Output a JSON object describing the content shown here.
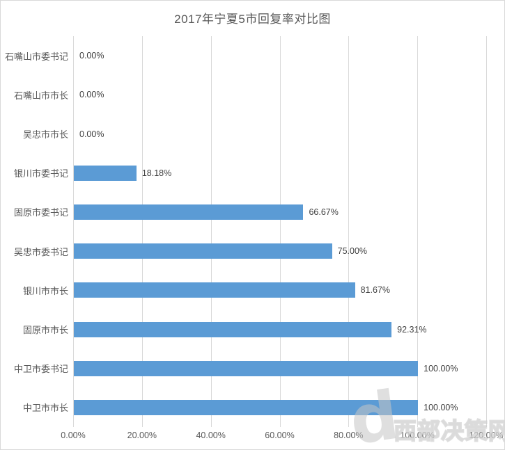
{
  "chart_data": {
    "type": "bar",
    "orientation": "horizontal",
    "title": "2017年宁夏5市回复率对比图",
    "categories": [
      "石嘴山市委书记",
      "石嘴山市市长",
      "吴忠市市长",
      "银川市委书记",
      "固原市委书记",
      "吴忠市委书记",
      "银川市市长",
      "固原市市长",
      "中卫市委书记",
      "中卫市市长"
    ],
    "values": [
      0,
      0,
      0,
      18.18,
      66.67,
      75.0,
      81.67,
      92.31,
      100.0,
      100.0
    ],
    "data_labels": [
      "0.00%",
      "0.00%",
      "0.00%",
      "18.18%",
      "66.67%",
      "75.00%",
      "81.67%",
      "92.31%",
      "100.00%",
      "100.00%"
    ],
    "x_ticks": [
      "0.00%",
      "20.00%",
      "40.00%",
      "60.00%",
      "80.00%",
      "100.00%",
      "120.00%"
    ],
    "xlim": [
      0,
      120
    ],
    "grid": true,
    "legend": "none",
    "bar_color": "#5b9bd5",
    "gridline_color": "#d9d9d9",
    "text_color": "#595959"
  },
  "watermark": {
    "logo_letter": "d",
    "text": "西部决策网"
  }
}
